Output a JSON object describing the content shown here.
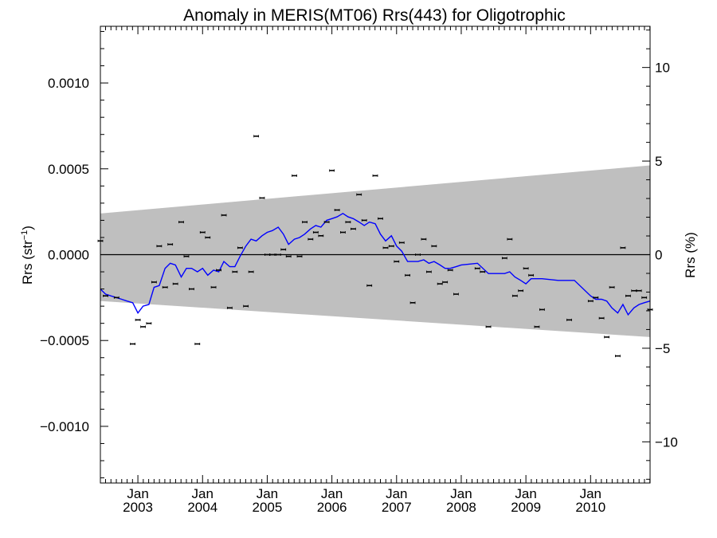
{
  "chart_data": {
    "type": "scatter",
    "title": "Anomaly in MERIS(MT06) Rrs(443) for Oligotrophic",
    "ylabel_left": "Rrs (str⁻¹)",
    "ylabel_right": "Rrs (%)",
    "xlim": [
      2002.42,
      2010.92
    ],
    "ylim": [
      -0.00133,
      0.00133
    ],
    "ylim_right": [
      -12.2,
      12.2
    ],
    "x_ticks": [
      {
        "x": 2003.0,
        "month": "Jan",
        "year": "2003"
      },
      {
        "x": 2004.0,
        "month": "Jan",
        "year": "2004"
      },
      {
        "x": 2005.0,
        "month": "Jan",
        "year": "2005"
      },
      {
        "x": 2006.0,
        "month": "Jan",
        "year": "2006"
      },
      {
        "x": 2007.0,
        "month": "Jan",
        "year": "2007"
      },
      {
        "x": 2008.0,
        "month": "Jan",
        "year": "2008"
      },
      {
        "x": 2009.0,
        "month": "Jan",
        "year": "2009"
      },
      {
        "x": 2010.0,
        "month": "Jan",
        "year": "2010"
      }
    ],
    "y_ticks_left": [
      {
        "v": 0.001,
        "label": "0.0010"
      },
      {
        "v": 0.0005,
        "label": "0.0005"
      },
      {
        "v": 0.0,
        "label": "0.0000"
      },
      {
        "v": -0.0005,
        "label": "−0.0005"
      },
      {
        "v": -0.001,
        "label": "−0.0010"
      }
    ],
    "y_ticks_right": [
      {
        "v": 10,
        "label": "10"
      },
      {
        "v": 5,
        "label": "5"
      },
      {
        "v": 0,
        "label": "0"
      },
      {
        "v": -5,
        "label": "−5"
      },
      {
        "v": -10,
        "label": "−10"
      }
    ],
    "band": {
      "x": [
        2002.42,
        2010.92
      ],
      "upper": [
        0.00024,
        0.00052
      ],
      "lower": [
        -0.00027,
        -0.00048
      ],
      "color": "#bfbfbf"
    },
    "zero_line": 0.0,
    "points": {
      "color": "#000000",
      "x": [
        2002.42,
        2002.5,
        2002.67,
        2002.92,
        2003.0,
        2003.08,
        2003.17,
        2003.25,
        2003.33,
        2003.42,
        2003.5,
        2003.58,
        2003.67,
        2003.75,
        2003.83,
        2003.92,
        2004.0,
        2004.08,
        2004.17,
        2004.25,
        2004.33,
        2004.42,
        2004.5,
        2004.58,
        2004.67,
        2004.75,
        2004.83,
        2004.92,
        2005.0,
        2005.08,
        2005.17,
        2005.25,
        2005.33,
        2005.42,
        2005.5,
        2005.58,
        2005.67,
        2005.75,
        2005.83,
        2005.92,
        2006.0,
        2006.08,
        2006.17,
        2006.25,
        2006.33,
        2006.42,
        2006.5,
        2006.58,
        2006.67,
        2006.75,
        2006.83,
        2006.92,
        2007.0,
        2007.08,
        2007.17,
        2007.25,
        2007.33,
        2007.42,
        2007.5,
        2007.58,
        2007.67,
        2007.75,
        2007.83,
        2007.92,
        2008.25,
        2008.33,
        2008.42,
        2008.67,
        2008.75,
        2008.83,
        2008.92,
        2009.0,
        2009.08,
        2009.17,
        2009.25,
        2009.67,
        2010.0,
        2010.08,
        2010.17,
        2010.25,
        2010.33,
        2010.42,
        2010.5,
        2010.58,
        2010.67,
        2010.75,
        2010.83,
        2010.92
      ],
      "y": [
        8e-05,
        -0.00024,
        -0.00025,
        -0.00052,
        -0.00038,
        -0.00042,
        -0.0004,
        -0.00016,
        5e-05,
        -0.00019,
        6e-05,
        -0.00017,
        0.00019,
        -1e-05,
        -0.0002,
        -0.00052,
        0.00013,
        0.0001,
        -0.00019,
        -9e-05,
        0.00023,
        -0.00031,
        -0.0001,
        4e-05,
        -0.0003,
        -0.0001,
        0.00069,
        0.00033,
        0.0,
        0.0,
        0.0,
        3e-05,
        -1e-05,
        0.00046,
        -1e-05,
        0.00019,
        9e-05,
        0.00013,
        0.00011,
        0.00019,
        0.00049,
        0.00026,
        0.00013,
        0.00019,
        0.00015,
        0.00035,
        0.0002,
        -0.00018,
        0.00046,
        0.00021,
        4e-05,
        5e-05,
        -4e-05,
        7e-05,
        -0.00012,
        -0.00028,
        0.0,
        9e-05,
        -0.0001,
        5e-05,
        -0.00017,
        -0.00016,
        -9e-05,
        -0.00023,
        -8e-05,
        -0.0001,
        -0.00042,
        -2e-05,
        9e-05,
        -0.00024,
        -0.00021,
        -8e-05,
        -0.00012,
        -0.00042,
        -0.00032,
        -0.00038,
        -0.00027,
        -0.00025,
        -0.00037,
        -0.00048,
        -0.00019,
        -0.00059,
        4e-05,
        -0.00024,
        -0.00021,
        -0.00021,
        -0.00025,
        -0.00032
      ]
    },
    "running_mean": {
      "color": "#0000ff",
      "x": [
        2002.42,
        2002.5,
        2002.58,
        2002.67,
        2002.75,
        2002.83,
        2002.92,
        2003.0,
        2003.08,
        2003.17,
        2003.25,
        2003.33,
        2003.42,
        2003.5,
        2003.58,
        2003.67,
        2003.75,
        2003.83,
        2003.92,
        2004.0,
        2004.08,
        2004.17,
        2004.25,
        2004.33,
        2004.42,
        2004.5,
        2004.58,
        2004.67,
        2004.75,
        2004.83,
        2004.92,
        2005.0,
        2005.08,
        2005.17,
        2005.25,
        2005.33,
        2005.42,
        2005.5,
        2005.58,
        2005.67,
        2005.75,
        2005.83,
        2005.92,
        2006.0,
        2006.08,
        2006.17,
        2006.25,
        2006.33,
        2006.42,
        2006.5,
        2006.58,
        2006.67,
        2006.75,
        2006.83,
        2006.92,
        2007.0,
        2007.08,
        2007.17,
        2007.25,
        2007.33,
        2007.42,
        2007.5,
        2007.58,
        2007.67,
        2007.75,
        2007.83,
        2007.92,
        2008.0,
        2008.25,
        2008.42,
        2008.67,
        2008.75,
        2008.83,
        2008.92,
        2009.0,
        2009.08,
        2009.25,
        2009.5,
        2009.75,
        2010.0,
        2010.08,
        2010.17,
        2010.25,
        2010.33,
        2010.42,
        2010.5,
        2010.58,
        2010.67,
        2010.75,
        2010.83,
        2010.92
      ],
      "y": [
        -0.0002,
        -0.00023,
        -0.00024,
        -0.00025,
        -0.00026,
        -0.00027,
        -0.00028,
        -0.00034,
        -0.0003,
        -0.00029,
        -0.00019,
        -0.00018,
        -8e-05,
        -5e-05,
        -6e-05,
        -0.00013,
        -8e-05,
        -8e-05,
        -0.0001,
        -8e-05,
        -0.00012,
        -9e-05,
        -0.0001,
        -4e-05,
        -7e-05,
        -7e-05,
        -1e-05,
        5e-05,
        9e-05,
        8e-05,
        0.00011,
        0.00013,
        0.00014,
        0.00016,
        0.00012,
        6e-05,
        9e-05,
        0.0001,
        0.00012,
        0.00015,
        0.00017,
        0.00016,
        0.0002,
        0.00021,
        0.00022,
        0.00024,
        0.00022,
        0.00021,
        0.00019,
        0.00017,
        0.00019,
        0.00018,
        0.00012,
        8e-05,
        0.00011,
        5e-05,
        2e-05,
        -4e-05,
        -4e-05,
        -4e-05,
        -3e-05,
        -5e-05,
        -4e-05,
        -6e-05,
        -8e-05,
        -8e-05,
        -7e-05,
        -6e-05,
        -5e-05,
        -0.00011,
        -0.00011,
        -0.0001,
        -0.00013,
        -0.00015,
        -0.00017,
        -0.00014,
        -0.00014,
        -0.00015,
        -0.00015,
        -0.00024,
        -0.00026,
        -0.00026,
        -0.00027,
        -0.00031,
        -0.00034,
        -0.00029,
        -0.00035,
        -0.00031,
        -0.00029,
        -0.00028,
        -0.00027
      ]
    }
  }
}
